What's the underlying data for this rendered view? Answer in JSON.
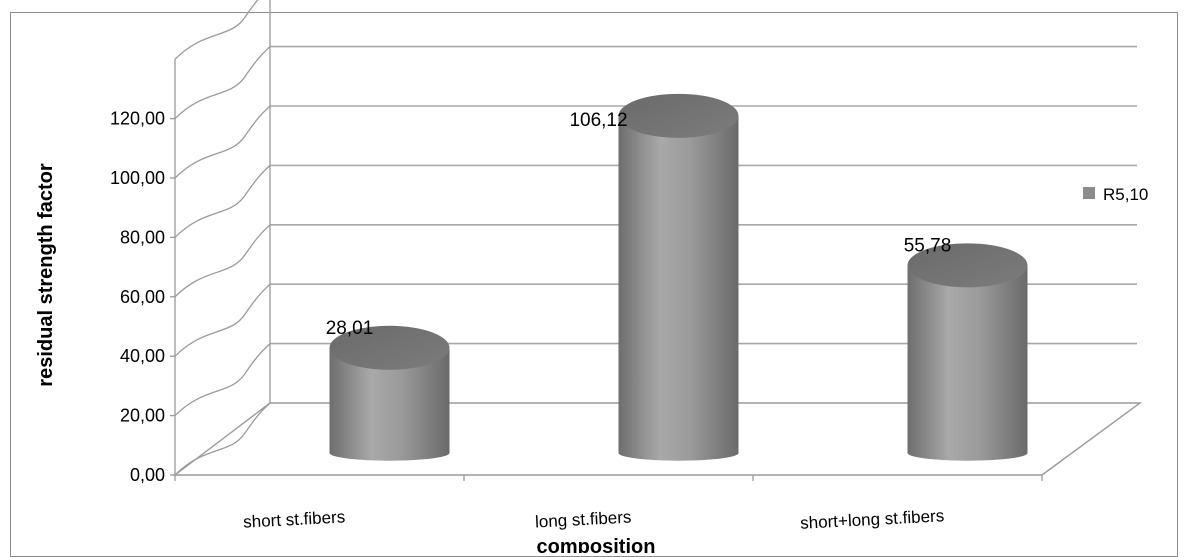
{
  "chart_data": {
    "type": "bar",
    "style": "3d-cylinder",
    "categories": [
      "short st.fibers",
      "long st.fibers",
      "short+long st.fibers"
    ],
    "series": [
      {
        "name": "R5,10",
        "values": [
          28.01,
          106.12,
          55.78
        ],
        "color": "#8c8c8c"
      }
    ],
    "data_labels": [
      "28,01",
      "106,12",
      "55,78"
    ],
    "xlabel": "composition",
    "ylabel": "residual strength factor",
    "ylim": [
      0,
      120
    ],
    "yticks": [
      "0,00",
      "20,00",
      "40,00",
      "60,00",
      "80,00",
      "100,00",
      "120,00"
    ],
    "grid": true,
    "legend": "right"
  }
}
